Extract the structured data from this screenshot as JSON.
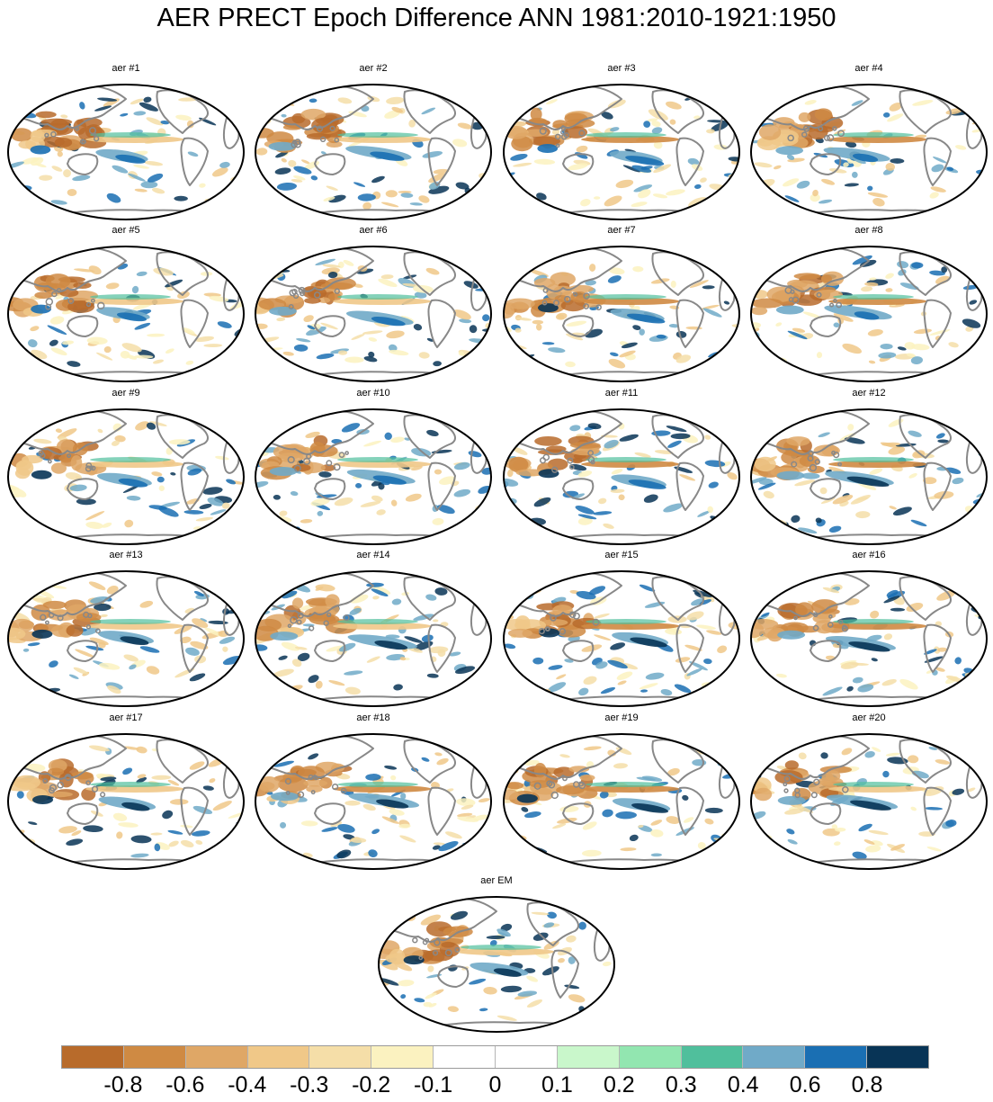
{
  "title": "AER PRECT Epoch Difference ANN 1981:2010-1921:1950",
  "panels": [
    {
      "label": "aer #1"
    },
    {
      "label": "aer #2"
    },
    {
      "label": "aer #3"
    },
    {
      "label": "aer #4"
    },
    {
      "label": "aer #5"
    },
    {
      "label": "aer #6"
    },
    {
      "label": "aer #7"
    },
    {
      "label": "aer #8"
    },
    {
      "label": "aer #9"
    },
    {
      "label": "aer #10"
    },
    {
      "label": "aer #11"
    },
    {
      "label": "aer #12"
    },
    {
      "label": "aer #13"
    },
    {
      "label": "aer #14"
    },
    {
      "label": "aer #15"
    },
    {
      "label": "aer #16"
    },
    {
      "label": "aer #17"
    },
    {
      "label": "aer #18"
    },
    {
      "label": "aer #19"
    },
    {
      "label": "aer #20"
    },
    {
      "label": "aer EM"
    }
  ],
  "colorbar": {
    "colors": [
      "#b86b2b",
      "#cf8a43",
      "#dfa766",
      "#f0c888",
      "#f5dea8",
      "#fbf2c0",
      "#ffffff",
      "#ffffff",
      "#c9f7cb",
      "#92e6b0",
      "#50bf9c",
      "#70aac8",
      "#1a6fb3",
      "#083456"
    ],
    "tick_labels": [
      "-0.8",
      "-0.6",
      "-0.4",
      "-0.3",
      "-0.2",
      "-0.1",
      "0",
      "0.1",
      "0.2",
      "0.3",
      "0.4",
      "0.6",
      "0.8"
    ]
  }
}
